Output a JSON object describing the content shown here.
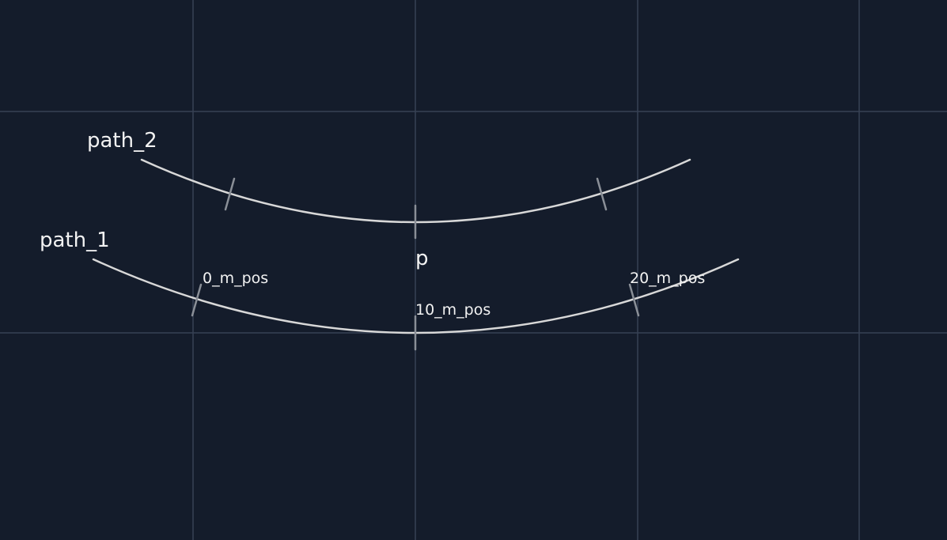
{
  "paths": [
    {
      "id": "path_1",
      "label": "path_1"
    },
    {
      "id": "path_2",
      "label": "path_2"
    }
  ],
  "point_label": "p",
  "position_labels": {
    "pos_0": "0_m_pos",
    "pos_10": "10_m_pos",
    "pos_20": "20_m_pos"
  },
  "colors": {
    "background": "#141c2b",
    "grid": "#364154",
    "curve": "#d8d8d8",
    "tick": "#8a8f97",
    "text": "#f2f2f2"
  }
}
